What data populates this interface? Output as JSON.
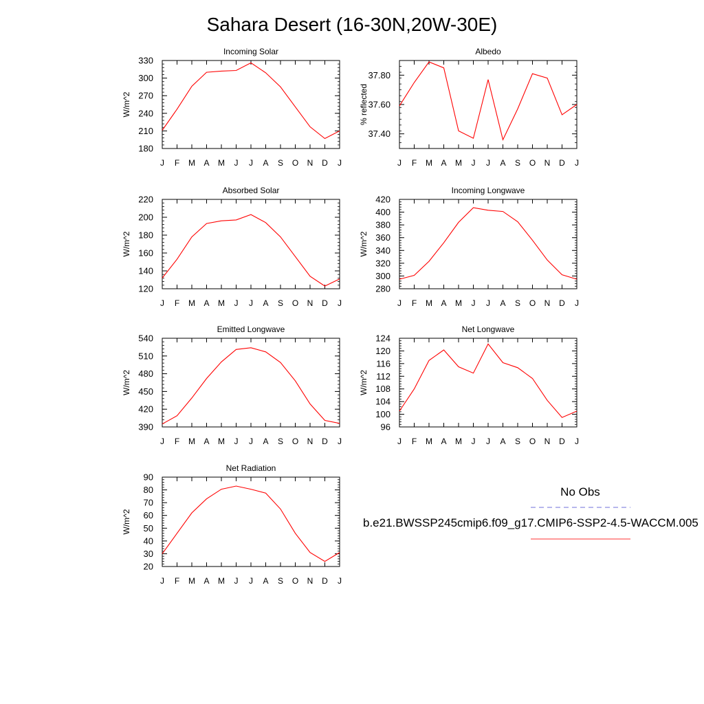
{
  "title": "Sahara Desert (16-30N,20W-30E)",
  "month_ticks": [
    "J",
    "F",
    "M",
    "A",
    "M",
    "J",
    "J",
    "A",
    "S",
    "O",
    "N",
    "D",
    "J"
  ],
  "legend": [
    {
      "label": "No Obs",
      "color": "#3333cc",
      "style": "dashed"
    },
    {
      "label": "b.e21.BWSSP245cmip6.f09_g17.CMIP6-SSP2-4.5-WACCM.005",
      "color": "#ff0000",
      "style": "solid"
    }
  ],
  "chart_data": [
    {
      "type": "line",
      "title": "Incoming Solar",
      "ylabel": "W/m^2",
      "ylim": [
        180,
        330
      ],
      "yticks": [
        180,
        210,
        240,
        270,
        300,
        330
      ],
      "ytick_labels": [
        "180",
        "210",
        "240",
        "270",
        "300",
        "330"
      ],
      "values": [
        211,
        247,
        286,
        310,
        312,
        313,
        326,
        309,
        285,
        251,
        217,
        197,
        210
      ]
    },
    {
      "type": "line",
      "title": "Albedo",
      "ylabel": "% reflected",
      "ylim": [
        37.3,
        37.9
      ],
      "yticks": [
        37.4,
        37.6,
        37.8
      ],
      "ytick_labels": [
        "37.40",
        "37.60",
        "37.80"
      ],
      "values": [
        37.59,
        37.75,
        37.89,
        37.85,
        37.42,
        37.37,
        37.77,
        37.36,
        37.57,
        37.81,
        37.78,
        37.53,
        37.6
      ]
    },
    {
      "type": "line",
      "title": "Absorbed Solar",
      "ylabel": "W/m^2",
      "ylim": [
        120,
        220
      ],
      "yticks": [
        120,
        140,
        160,
        180,
        200,
        220
      ],
      "ytick_labels": [
        "120",
        "140",
        "160",
        "180",
        "200",
        "220"
      ],
      "values": [
        132,
        153,
        178,
        193,
        196,
        197,
        203,
        194,
        178,
        156,
        134,
        123,
        131
      ]
    },
    {
      "type": "line",
      "title": "Incoming Longwave",
      "ylabel": "W/m^2",
      "ylim": [
        280,
        420
      ],
      "yticks": [
        280,
        300,
        320,
        340,
        360,
        380,
        400,
        420
      ],
      "ytick_labels": [
        "280",
        "300",
        "320",
        "340",
        "360",
        "380",
        "400",
        "420"
      ],
      "values": [
        295,
        301,
        323,
        352,
        384,
        407,
        403,
        401,
        385,
        356,
        325,
        302,
        295
      ]
    },
    {
      "type": "line",
      "title": "Emitted Longwave",
      "ylabel": "W/m^2",
      "ylim": [
        390,
        540
      ],
      "yticks": [
        390,
        420,
        450,
        480,
        510,
        540
      ],
      "ytick_labels": [
        "390",
        "420",
        "450",
        "480",
        "510",
        "540"
      ],
      "values": [
        395,
        409,
        439,
        472,
        500,
        521,
        524,
        517,
        499,
        468,
        429,
        401,
        396
      ]
    },
    {
      "type": "line",
      "title": "Net Longwave",
      "ylabel": "W/m^2",
      "ylim": [
        96,
        124
      ],
      "yticks": [
        96,
        100,
        104,
        108,
        112,
        116,
        120,
        124
      ],
      "ytick_labels": [
        "96",
        "100",
        "104",
        "108",
        "112",
        "116",
        "120",
        "124"
      ],
      "values": [
        101,
        108,
        117,
        120.3,
        115,
        113,
        122.2,
        116.3,
        114.7,
        111.3,
        104.4,
        99,
        101
      ]
    },
    {
      "type": "line",
      "title": "Net Radiation",
      "ylabel": "W/m^2",
      "ylim": [
        20,
        90
      ],
      "yticks": [
        20,
        30,
        40,
        50,
        60,
        70,
        80,
        90
      ],
      "ytick_labels": [
        "20",
        "30",
        "40",
        "50",
        "60",
        "70",
        "80",
        "90"
      ],
      "values": [
        30,
        46,
        62,
        73,
        80.5,
        83,
        80.5,
        77.5,
        65,
        46,
        31,
        24,
        31
      ]
    }
  ]
}
